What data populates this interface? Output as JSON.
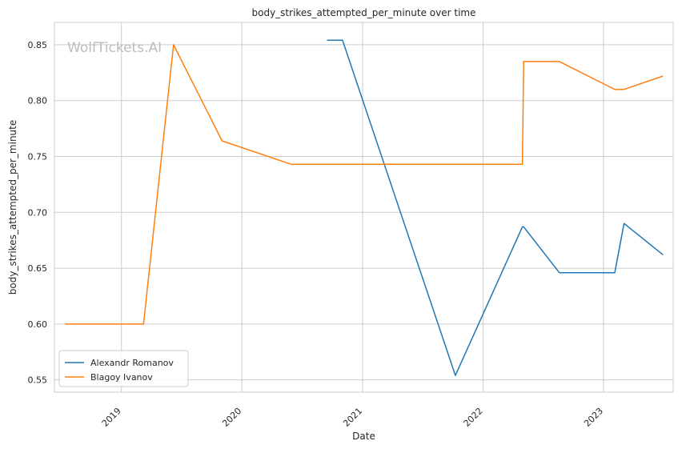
{
  "chart_data": {
    "type": "line",
    "title": "body_strikes_attempted_per_minute over time",
    "xlabel": "Date",
    "ylabel": "body_strikes_attempted_per_minute",
    "watermark": "WolfTickets.AI",
    "x_ticks": [
      "2019",
      "2020",
      "2021",
      "2022",
      "2023"
    ],
    "y_ticks": [
      "0.55",
      "0.60",
      "0.65",
      "0.70",
      "0.75",
      "0.80",
      "0.85"
    ],
    "xlim": [
      "2018-06-12",
      "2023-07-31"
    ],
    "ylim": [
      0.539,
      0.87
    ],
    "grid": true,
    "legend_position": "lower-left",
    "series": [
      {
        "name": "Alexandr Romanov",
        "color": "#1f77b4",
        "points": [
          [
            "2020-09-15",
            0.854
          ],
          [
            "2020-11-01",
            0.854
          ],
          [
            "2021-10-09",
            0.554
          ],
          [
            "2022-04-30",
            0.687
          ],
          [
            "2022-05-04",
            0.687
          ],
          [
            "2022-08-20",
            0.646
          ],
          [
            "2023-02-04",
            0.646
          ],
          [
            "2023-03-04",
            0.69
          ],
          [
            "2023-06-30",
            0.662
          ]
        ]
      },
      {
        "name": "Blagoy Ivanov",
        "color": "#ff7f0e",
        "points": [
          [
            "2018-07-14",
            0.6
          ],
          [
            "2019-03-09",
            0.6
          ],
          [
            "2019-06-08",
            0.85
          ],
          [
            "2019-11-02",
            0.764
          ],
          [
            "2020-05-30",
            0.743
          ],
          [
            "2022-04-30",
            0.743
          ],
          [
            "2022-05-04",
            0.835
          ],
          [
            "2022-08-20",
            0.835
          ],
          [
            "2023-02-04",
            0.81
          ],
          [
            "2023-03-04",
            0.81
          ],
          [
            "2023-06-30",
            0.822
          ]
        ]
      }
    ]
  }
}
